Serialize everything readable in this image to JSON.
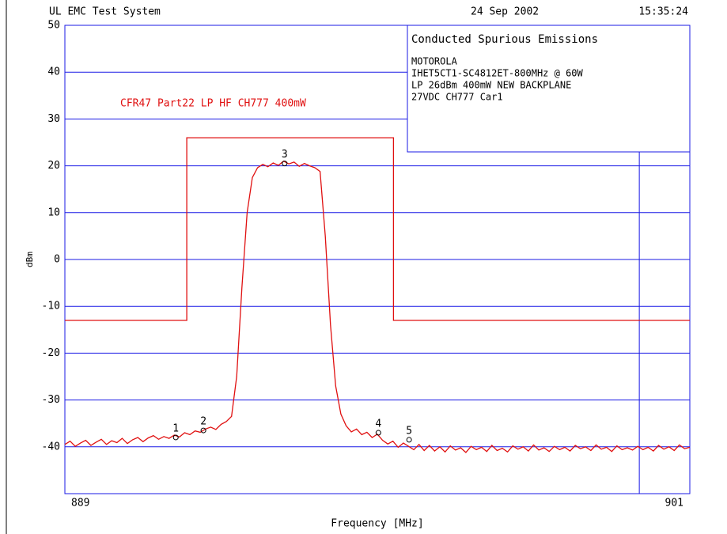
{
  "header": {
    "system": "UL EMC Test System",
    "date": "24 Sep 2002",
    "time": "15:35:24"
  },
  "chart_data": {
    "type": "line",
    "xlabel": "Frequency [MHz]",
    "ylabel": "dBm",
    "xlim": [
      889,
      901
    ],
    "ylim": [
      -50,
      50
    ],
    "xticks": [
      889,
      901
    ],
    "yticks": [
      50,
      40,
      30,
      20,
      10,
      0,
      -10,
      -20,
      -30,
      -40
    ],
    "grid": true,
    "grid_color": "#1a1ae6",
    "vertical_line_x": 900.03,
    "info_box": {
      "title": "Conducted Spurious Emissions",
      "lines": [
        "MOTOROLA",
        "IHET5CT1-SC4812ET-800MHz @ 60W",
        "LP 26dBm 400mW NEW BACKPLANE",
        "27VDC  CH777 Car1"
      ]
    },
    "limit": {
      "label": "CFR47 Part22 LP HF CH777  400mW",
      "color": "#e01010",
      "x": [
        889,
        891.34,
        891.34,
        895.31,
        895.31,
        901
      ],
      "values": [
        -13,
        -13,
        26,
        26,
        -13,
        -13
      ]
    },
    "trace": {
      "color": "#e01010",
      "x": [
        889.0,
        889.1,
        889.2,
        889.3,
        889.4,
        889.5,
        889.6,
        889.7,
        889.8,
        889.9,
        890.0,
        890.1,
        890.2,
        890.3,
        890.4,
        890.5,
        890.6,
        890.7,
        890.8,
        890.9,
        891.0,
        891.1,
        891.2,
        891.3,
        891.4,
        891.5,
        891.6,
        891.7,
        891.8,
        891.9,
        892.0,
        892.1,
        892.2,
        892.3,
        892.4,
        892.5,
        892.6,
        892.7,
        892.8,
        892.9,
        893.0,
        893.1,
        893.2,
        893.3,
        893.4,
        893.5,
        893.6,
        893.7,
        893.8,
        893.9,
        894.0,
        894.1,
        894.2,
        894.3,
        894.4,
        894.5,
        894.6,
        894.7,
        894.8,
        894.9,
        895.0,
        895.1,
        895.2,
        895.3,
        895.4,
        895.5,
        895.6,
        895.7,
        895.8,
        895.9,
        896.0,
        896.1,
        896.2,
        896.3,
        896.4,
        896.5,
        896.6,
        896.7,
        896.8,
        896.9,
        897.0,
        897.1,
        897.2,
        897.3,
        897.4,
        897.5,
        897.6,
        897.7,
        897.8,
        897.9,
        898.0,
        898.1,
        898.2,
        898.3,
        898.4,
        898.5,
        898.6,
        898.7,
        898.8,
        898.9,
        899.0,
        899.1,
        899.2,
        899.3,
        899.4,
        899.5,
        899.6,
        899.7,
        899.8,
        899.9,
        900.0,
        900.1,
        900.2,
        900.3,
        900.4,
        900.5,
        900.6,
        900.7,
        900.8,
        900.9,
        901.0
      ],
      "values": [
        -39.5,
        -38.8,
        -39.9,
        -39.2,
        -38.6,
        -39.7,
        -39.0,
        -38.4,
        -39.5,
        -38.7,
        -39.1,
        -38.2,
        -39.3,
        -38.5,
        -38.0,
        -38.9,
        -38.1,
        -37.6,
        -38.4,
        -37.8,
        -38.2,
        -37.5,
        -37.9,
        -37.0,
        -37.4,
        -36.6,
        -36.9,
        -36.2,
        -35.8,
        -36.3,
        -35.2,
        -34.6,
        -33.5,
        -25,
        -6,
        10,
        17.5,
        19.6,
        20.3,
        19.8,
        20.6,
        20.1,
        21.0,
        20.4,
        20.8,
        19.9,
        20.5,
        20.0,
        19.6,
        18.8,
        5,
        -14,
        -27,
        -33,
        -35.5,
        -36.8,
        -36.2,
        -37.4,
        -36.9,
        -38.0,
        -37.3,
        -38.6,
        -39.4,
        -38.8,
        -40.1,
        -39.2,
        -39.9,
        -40.6,
        -39.5,
        -40.8,
        -39.7,
        -40.9,
        -40.0,
        -41.1,
        -39.8,
        -40.7,
        -40.2,
        -41.2,
        -39.9,
        -40.6,
        -40.1,
        -41.0,
        -39.7,
        -40.8,
        -40.3,
        -41.1,
        -39.8,
        -40.5,
        -40.0,
        -40.9,
        -39.6,
        -40.7,
        -40.2,
        -41.0,
        -39.9,
        -40.6,
        -40.1,
        -40.9,
        -39.7,
        -40.4,
        -40.0,
        -40.8,
        -39.6,
        -40.5,
        -40.1,
        -41.0,
        -39.8,
        -40.6,
        -40.2,
        -40.7,
        -39.9,
        -40.6,
        -40.1,
        -40.9,
        -39.7,
        -40.5,
        -40.0,
        -40.8,
        -39.6,
        -40.4,
        -40.1
      ]
    },
    "markers": [
      {
        "label": "1",
        "x": 891.13,
        "y": -38
      },
      {
        "label": "2",
        "x": 891.66,
        "y": -36.5
      },
      {
        "label": "3",
        "x": 893.22,
        "y": 20.5
      },
      {
        "label": "4",
        "x": 895.02,
        "y": -37
      },
      {
        "label": "5",
        "x": 895.61,
        "y": -38.5
      }
    ]
  }
}
